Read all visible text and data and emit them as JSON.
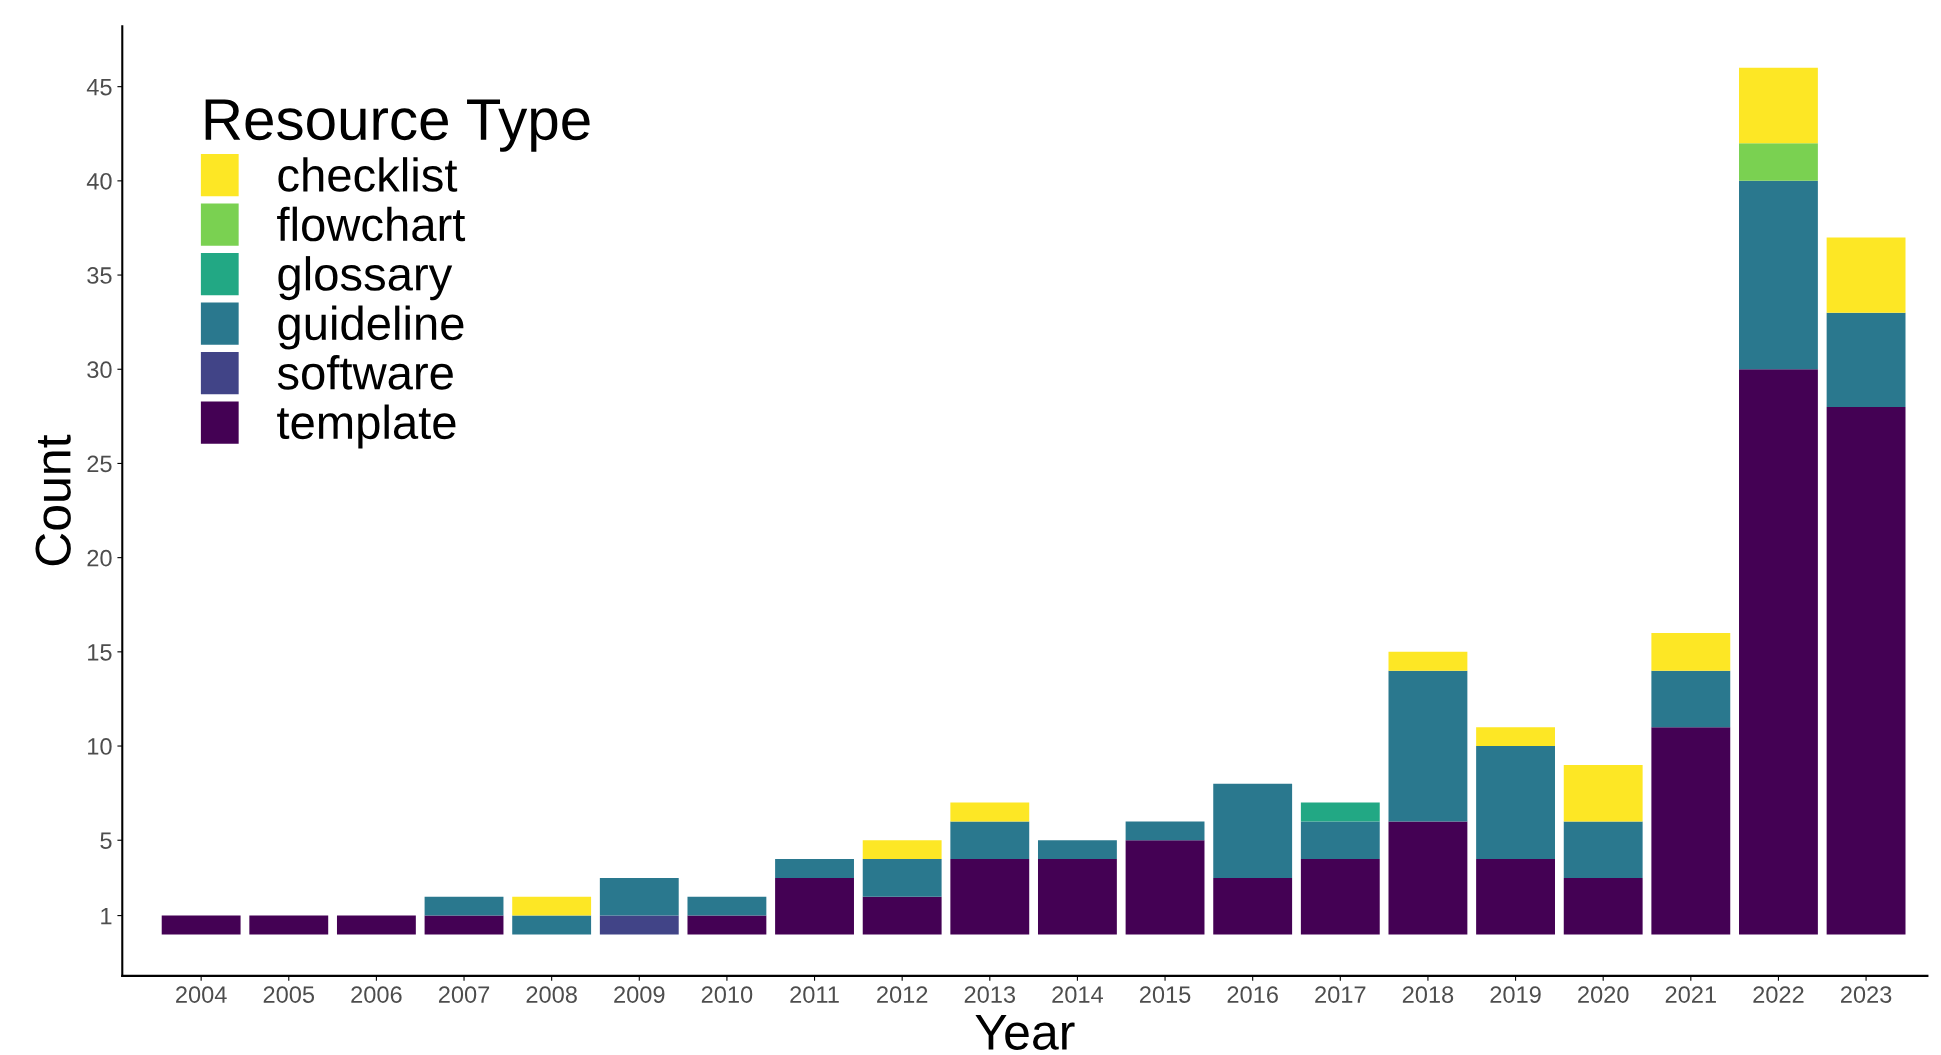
{
  "chart_data": {
    "type": "bar",
    "stacked": true,
    "xlabel": "Year",
    "ylabel": "Count",
    "legend_title": "Resource Type",
    "legend": "top left",
    "grid": false,
    "categories": [
      "2004",
      "2005",
      "2006",
      "2007",
      "2008",
      "2009",
      "2010",
      "2011",
      "2012",
      "2013",
      "2014",
      "2015",
      "2016",
      "2017",
      "2018",
      "2019",
      "2020",
      "2021",
      "2022",
      "2023"
    ],
    "ylim": [
      -2.2,
      48.2
    ],
    "yticks": [
      1,
      5,
      10,
      15,
      20,
      25,
      30,
      35,
      40,
      45
    ],
    "series": [
      {
        "name": "template",
        "color": "#440154",
        "values": [
          1,
          1,
          1,
          1,
          0,
          0,
          1,
          3,
          2,
          4,
          4,
          5,
          3,
          4,
          6,
          4,
          3,
          11,
          30,
          28
        ]
      },
      {
        "name": "software",
        "color": "#414487",
        "values": [
          0,
          0,
          0,
          0,
          0,
          1,
          0,
          0,
          0,
          0,
          0,
          0,
          0,
          0,
          0,
          0,
          0,
          0,
          0,
          0
        ]
      },
      {
        "name": "guideline",
        "color": "#2a788e",
        "values": [
          0,
          0,
          0,
          1,
          1,
          2,
          1,
          1,
          2,
          2,
          1,
          1,
          5,
          2,
          8,
          6,
          3,
          3,
          10,
          5
        ]
      },
      {
        "name": "glossary",
        "color": "#22a884",
        "values": [
          0,
          0,
          0,
          0,
          0,
          0,
          0,
          0,
          0,
          0,
          0,
          0,
          0,
          1,
          0,
          0,
          0,
          0,
          0,
          0
        ]
      },
      {
        "name": "flowchart",
        "color": "#7ad151",
        "values": [
          0,
          0,
          0,
          0,
          0,
          0,
          0,
          0,
          0,
          0,
          0,
          0,
          0,
          0,
          0,
          0,
          0,
          0,
          2,
          0
        ]
      },
      {
        "name": "checklist",
        "color": "#fde725",
        "values": [
          0,
          0,
          0,
          0,
          1,
          0,
          0,
          0,
          1,
          1,
          0,
          0,
          0,
          0,
          1,
          1,
          3,
          2,
          4,
          4
        ]
      }
    ]
  }
}
